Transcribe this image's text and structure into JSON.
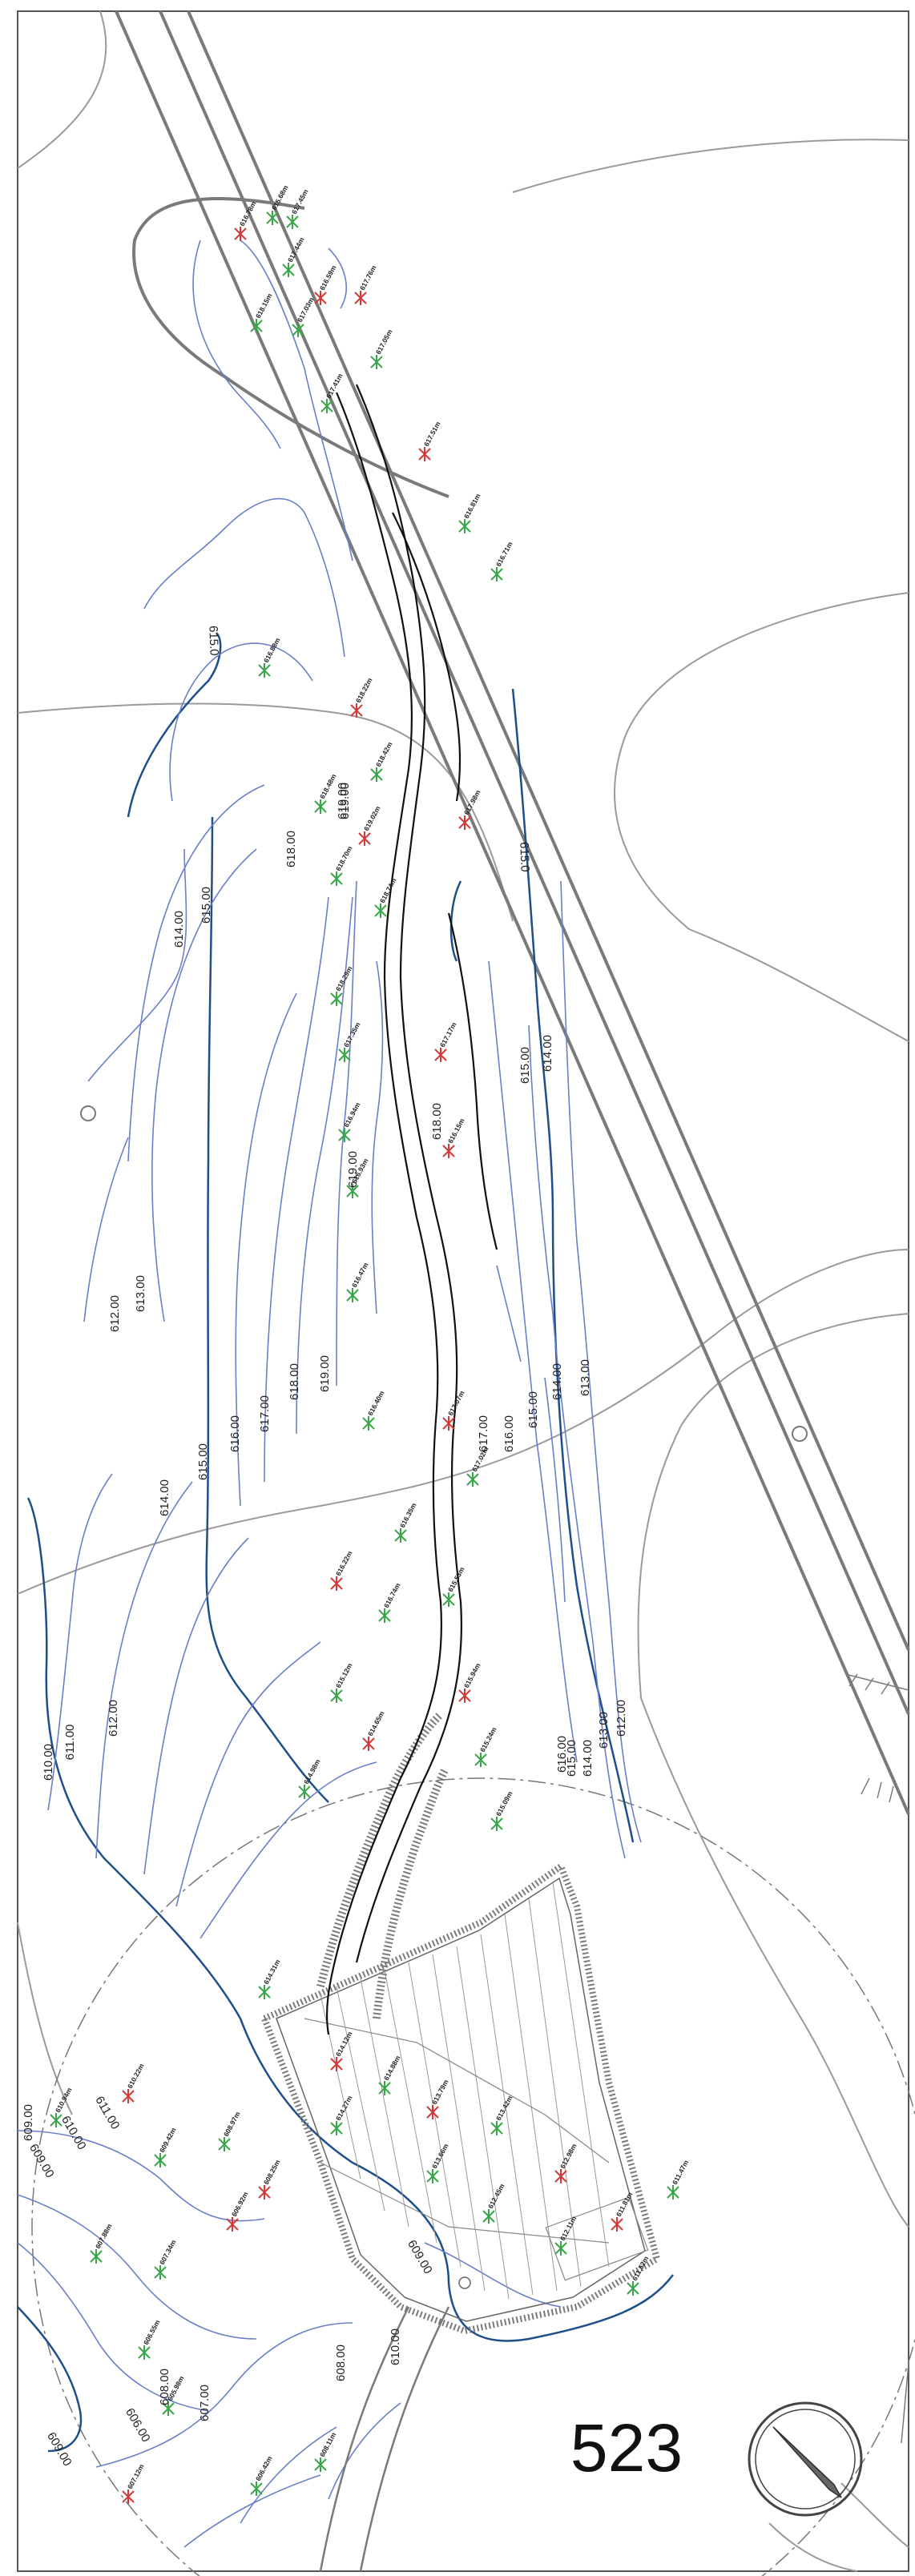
{
  "sheet": {
    "number": "523"
  },
  "colors": {
    "major_contour": "#1f4f8a",
    "minor_contour": "#6a7fc8",
    "road": "#7a7a7a",
    "thin_line": "#9a9a9a",
    "track": "#111111",
    "marker_existing": "#3aa64a",
    "marker_new": "#d23a3a"
  },
  "contour_labels": [
    "615.0",
    "618.00",
    "619.00",
    "614.00",
    "615.00",
    "615.0",
    "614.00",
    "615.00",
    "612.00",
    "613.00",
    "619.00",
    "618.00",
    "617.00",
    "616.00",
    "615.00",
    "614.00",
    "613.00",
    "614.00",
    "615.00",
    "616.00",
    "617.00",
    "618.00",
    "619.00",
    "619.00",
    "610.00",
    "611.00",
    "612.00",
    "612.00",
    "613.00",
    "614.00",
    "615.00",
    "611.00",
    "610.00",
    "609.00",
    "608.00",
    "607.00",
    "606.00",
    "609.00",
    "608.00",
    "609.00",
    "610.00",
    "616.00",
    "609.00"
  ],
  "spot_elevations": {
    "upper": [
      "615.68m",
      "616.78m",
      "617.45m",
      "617.44m",
      "616.59m",
      "618.15m",
      "617.03m",
      "617.76m",
      "617.05m",
      "617.41m",
      "617.51m",
      "616.81m",
      "616.71m"
    ],
    "mid": [
      "616.88m",
      "618.22m",
      "618.42m",
      "618.48m",
      "619.02m",
      "618.70m",
      "618.74m",
      "617.98m",
      "618.29m",
      "617.35m",
      "617.17m",
      "616.94m",
      "616.93m",
      "616.15m",
      "616.47m"
    ],
    "lower": [
      "616.40m",
      "617.07m",
      "616.35m",
      "617.02m",
      "616.22m",
      "616.74m",
      "615.53m",
      "615.94m",
      "615.12m",
      "614.98m",
      "614.65m",
      "615.24m",
      "615.09m"
    ],
    "pad": [
      "614.31m",
      "614.12m",
      "614.88m",
      "614.27m",
      "613.79m",
      "613.42m",
      "613.66m",
      "612.98m",
      "612.45m",
      "612.11m",
      "611.81m",
      "611.52m",
      "611.47m"
    ],
    "south": [
      "610.94m",
      "610.22m",
      "609.42m",
      "608.97m",
      "608.25m",
      "607.88m",
      "607.34m",
      "606.92m",
      "606.55m",
      "605.98m",
      "607.12m",
      "606.42m",
      "608.11m"
    ]
  }
}
